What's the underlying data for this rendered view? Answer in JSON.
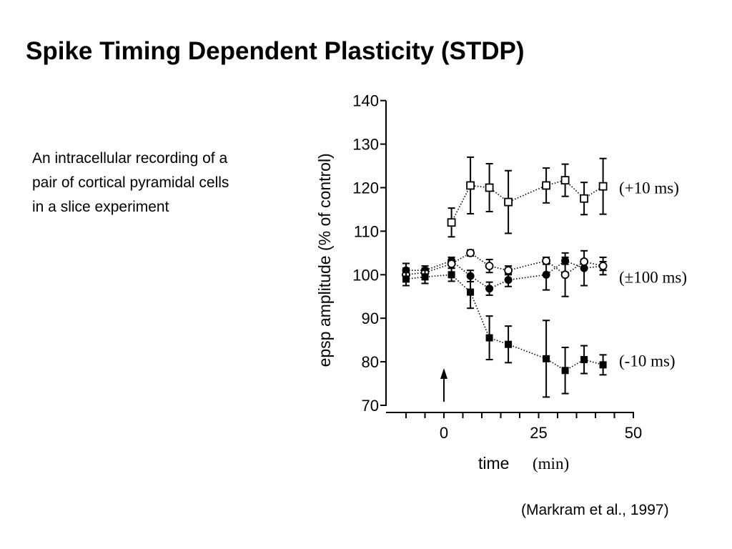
{
  "slide": {
    "title": "Spike Timing Dependent Plasticity (STDP)",
    "description": "An intracellular recording of a pair of cortical pyramidal cells in a slice experiment",
    "citation": "(Markram et al., 1997)"
  },
  "chart_data": {
    "type": "scatter",
    "title": "",
    "ylabel": "epsp amplitude (% of control)",
    "xlabel": "time",
    "xlabel_unit": "(min)",
    "xlim": [
      -15,
      50
    ],
    "ylim": [
      70,
      140
    ],
    "x_ticks": [
      -10,
      -5,
      0,
      5,
      10,
      15,
      20,
      25,
      30,
      35,
      40,
      45,
      50
    ],
    "x_tick_labels": [
      {
        "x": 0,
        "label": "0"
      },
      {
        "x": 25,
        "label": "25"
      },
      {
        "x": 50,
        "label": "50"
      }
    ],
    "y_ticks": [
      {
        "y": 70,
        "label": "70"
      },
      {
        "y": 80,
        "label": "80"
      },
      {
        "y": 90,
        "label": "90"
      },
      {
        "y": 100,
        "label": "100"
      },
      {
        "y": 110,
        "label": "110"
      },
      {
        "y": 120,
        "label": "120"
      },
      {
        "y": 130,
        "label": "130"
      },
      {
        "y": 140,
        "label": "140"
      }
    ],
    "stimulus_arrow_x": 0,
    "grid": false,
    "series": [
      {
        "name": "(+10 ms)",
        "marker": "open-square",
        "line_label": "(+10 ms)",
        "label_y": 120,
        "points": [
          {
            "x": 2,
            "y": 112,
            "err": 3.3
          },
          {
            "x": 7,
            "y": 120.5,
            "err": 6.5
          },
          {
            "x": 12,
            "y": 120,
            "err": 5.5
          },
          {
            "x": 17,
            "y": 116.7,
            "err": 7.2
          },
          {
            "x": 27,
            "y": 120.5,
            "err": 4
          },
          {
            "x": 32,
            "y": 121.7,
            "err": 3.7
          },
          {
            "x": 37,
            "y": 117.5,
            "err": 3.7
          },
          {
            "x": 42,
            "y": 120.3,
            "err": 6.4
          }
        ]
      },
      {
        "name": "(±100 ms)",
        "marker": "filled-circle",
        "line_label": "(±100 ms)",
        "label_y": 99.5,
        "points": [
          {
            "x": -10,
            "y": 101,
            "err": 1.6
          },
          {
            "x": -5,
            "y": 101,
            "err": 1
          },
          {
            "x": 2,
            "y": 103.2,
            "err": 0.8
          },
          {
            "x": 7,
            "y": 99.7,
            "err": 1.3
          },
          {
            "x": 12,
            "y": 96.8,
            "err": 1.5
          },
          {
            "x": 17,
            "y": 98.8,
            "err": 1.5
          },
          {
            "x": 27,
            "y": 100,
            "err": 3.5
          },
          {
            "x": 32,
            "y": 103.2,
            "err": 0.8
          },
          {
            "x": 37,
            "y": 101.5,
            "err": 4
          },
          {
            "x": 42,
            "y": 102,
            "err": 2
          }
        ]
      },
      {
        "name": "(±100 ms)",
        "marker": "open-circle",
        "points": [
          {
            "x": -10,
            "y": 100,
            "err": 1.5
          },
          {
            "x": -5,
            "y": 100.5,
            "err": 1
          },
          {
            "x": 2,
            "y": 102.5,
            "err": 1
          },
          {
            "x": 7,
            "y": 105,
            "err": 0.7
          },
          {
            "x": 12,
            "y": 102,
            "err": 1.5
          },
          {
            "x": 17,
            "y": 101,
            "err": 1
          },
          {
            "x": 27,
            "y": 103.2,
            "err": 0.8
          },
          {
            "x": 32,
            "y": 100,
            "err": 5
          },
          {
            "x": 37,
            "y": 103,
            "err": 0.5
          },
          {
            "x": 42,
            "y": 102,
            "err": 1
          }
        ]
      },
      {
        "name": "(-10 ms)",
        "marker": "filled-square",
        "line_label": "(-10 ms)",
        "label_y": 80.3,
        "points": [
          {
            "x": -10,
            "y": 99,
            "err": 1.5
          },
          {
            "x": -5,
            "y": 99.5,
            "err": 1.5
          },
          {
            "x": 2,
            "y": 100,
            "err": 1.5
          },
          {
            "x": 7,
            "y": 96,
            "err": 3.7
          },
          {
            "x": 12,
            "y": 85.5,
            "err": 5
          },
          {
            "x": 17,
            "y": 84,
            "err": 4.2
          },
          {
            "x": 27,
            "y": 80.7,
            "err": 8.8
          },
          {
            "x": 32,
            "y": 78,
            "err": 5.3
          },
          {
            "x": 37,
            "y": 80.5,
            "err": 3.2
          },
          {
            "x": 42,
            "y": 79.3,
            "err": 2.3
          }
        ]
      }
    ]
  }
}
